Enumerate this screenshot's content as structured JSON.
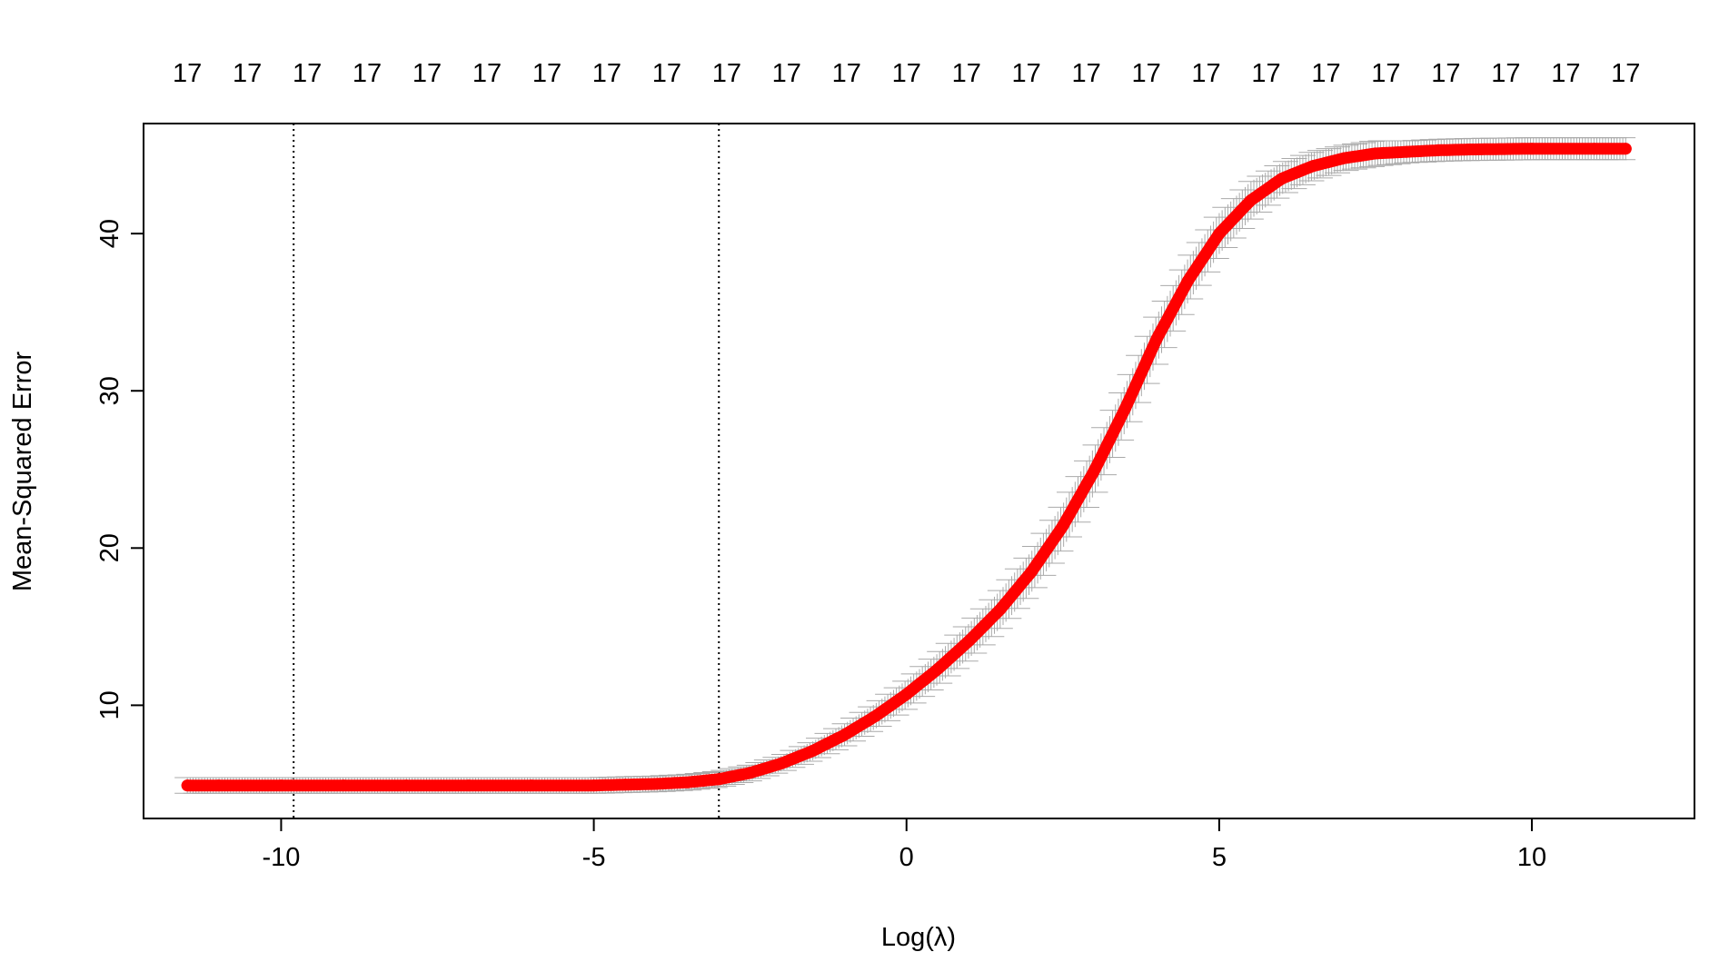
{
  "chart_data": {
    "type": "line",
    "xlabel": "Log(λ)",
    "ylabel": "Mean-Squared Error",
    "xlim": [
      -12.2,
      12.6
    ],
    "ylim": [
      2.8,
      47.0
    ],
    "x_ticks": [
      -10,
      -5,
      0,
      5,
      10
    ],
    "y_ticks": [
      10,
      20,
      30,
      40
    ],
    "top_axis": {
      "label_value": "17",
      "count": 25,
      "x_start": -11.5,
      "x_end": 11.5
    },
    "vlines": [
      -9.8,
      -3.0
    ],
    "series": [
      {
        "color": "#ff0000",
        "error_bar_color": "#a9a9a9",
        "x": [
          -11.5,
          -11.0,
          -10.0,
          -9.0,
          -8.0,
          -7.0,
          -6.0,
          -5.0,
          -4.5,
          -4.0,
          -3.5,
          -3.0,
          -2.5,
          -2.0,
          -1.5,
          -1.0,
          -0.5,
          0.0,
          0.5,
          1.0,
          1.5,
          2.0,
          2.5,
          3.0,
          3.5,
          4.0,
          4.5,
          5.0,
          5.5,
          6.0,
          6.5,
          7.0,
          7.5,
          8.0,
          8.5,
          9.0,
          10.0,
          11.0,
          11.5
        ],
        "y": [
          4.9,
          4.9,
          4.9,
          4.9,
          4.9,
          4.9,
          4.9,
          4.9,
          4.95,
          5.0,
          5.1,
          5.3,
          5.7,
          6.3,
          7.1,
          8.1,
          9.3,
          10.7,
          12.3,
          14.1,
          16.1,
          18.5,
          21.4,
          24.9,
          28.9,
          33.3,
          37.0,
          40.0,
          42.1,
          43.5,
          44.3,
          44.8,
          45.1,
          45.2,
          45.3,
          45.35,
          45.4,
          45.4,
          45.4
        ],
        "err": [
          0.5,
          0.5,
          0.5,
          0.5,
          0.5,
          0.5,
          0.5,
          0.5,
          0.5,
          0.5,
          0.5,
          0.5,
          0.5,
          0.5,
          0.6,
          0.7,
          0.8,
          0.9,
          1.0,
          1.1,
          1.2,
          1.3,
          1.4,
          1.5,
          1.5,
          1.5,
          1.4,
          1.3,
          1.2,
          1.0,
          0.9,
          0.8,
          0.8,
          0.7,
          0.7,
          0.7,
          0.7,
          0.7,
          0.7
        ]
      }
    ]
  }
}
